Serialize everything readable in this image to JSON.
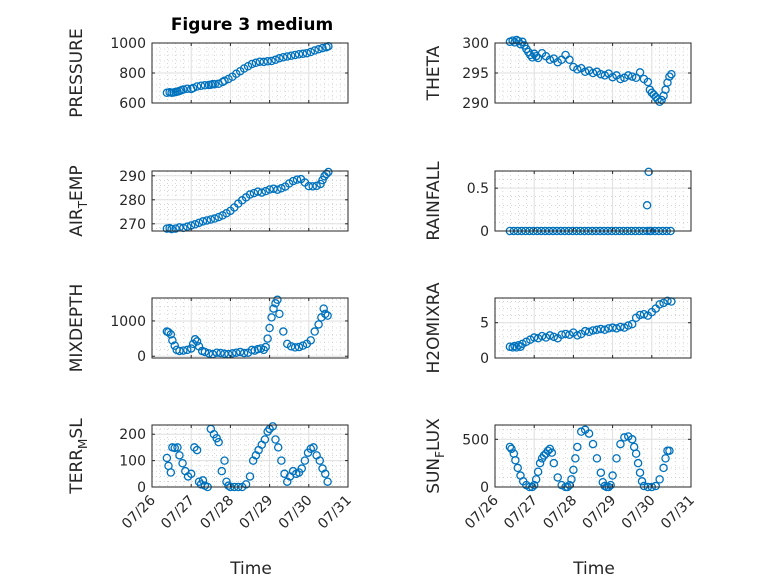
{
  "figure": {
    "title": "Figure 3 medium",
    "xlabel": "Time"
  },
  "colors": {
    "marker": "#0072BD",
    "axis": "#262626",
    "grid": "#dfdfdf",
    "minor_grid": "#bcbcbc",
    "background": "#ffffff"
  },
  "chart_data": [
    {
      "type": "scatter",
      "name": "pressure",
      "ylabel": "PRESSURE",
      "ylim": [
        600,
        1000
      ],
      "yticks": [
        600,
        800,
        1000
      ],
      "ytick_labels": [
        "600",
        "800",
        "1000"
      ],
      "xlim": [
        0,
        5
      ],
      "xticks": [
        0,
        1,
        2,
        3,
        4,
        5
      ],
      "xtick_labels": [
        "07/26",
        "07/27",
        "07/28",
        "07/29",
        "07/30",
        "07/31"
      ],
      "show_xticklabels": false,
      "grid": true,
      "minor_grid": true,
      "x": [
        0.38,
        0.45,
        0.5,
        0.55,
        0.6,
        0.65,
        0.7,
        0.75,
        0.8,
        0.9,
        1.0,
        1.05,
        1.15,
        1.25,
        1.35,
        1.45,
        1.5,
        1.55,
        1.6,
        1.7,
        1.8,
        1.85,
        1.95,
        2.05,
        2.15,
        2.25,
        2.35,
        2.45,
        2.55,
        2.65,
        2.75,
        2.85,
        2.95,
        3.05,
        3.15,
        3.25,
        3.35,
        3.45,
        3.55,
        3.65,
        3.75,
        3.85,
        3.95,
        4.05,
        4.15,
        4.25,
        4.35,
        4.45,
        4.5
      ],
      "y": [
        668,
        672,
        668,
        670,
        673,
        676,
        680,
        685,
        690,
        695,
        693,
        700,
        710,
        715,
        718,
        720,
        722,
        726,
        725,
        728,
        740,
        748,
        760,
        775,
        795,
        812,
        830,
        845,
        860,
        868,
        875,
        874,
        878,
        880,
        888,
        898,
        905,
        910,
        915,
        920,
        925,
        928,
        932,
        940,
        950,
        958,
        966,
        972,
        978
      ]
    },
    {
      "type": "scatter",
      "name": "theta",
      "ylabel": "THETA",
      "ylim": [
        290,
        300
      ],
      "yticks": [
        290,
        295,
        300
      ],
      "ytick_labels": [
        "290",
        "295",
        "300"
      ],
      "xlim": [
        0,
        5
      ],
      "xticks": [
        0,
        1,
        2,
        3,
        4,
        5
      ],
      "xtick_labels": [
        "07/26",
        "07/27",
        "07/28",
        "07/29",
        "07/30",
        "07/31"
      ],
      "show_xticklabels": false,
      "grid": true,
      "minor_grid": true,
      "x": [
        0.38,
        0.45,
        0.5,
        0.55,
        0.6,
        0.65,
        0.7,
        0.75,
        0.8,
        0.85,
        0.9,
        0.95,
        1.0,
        1.05,
        1.1,
        1.2,
        1.3,
        1.4,
        1.5,
        1.6,
        1.7,
        1.8,
        1.9,
        2.0,
        2.1,
        2.2,
        2.3,
        2.4,
        2.5,
        2.6,
        2.7,
        2.8,
        2.9,
        3.0,
        3.1,
        3.2,
        3.3,
        3.4,
        3.5,
        3.6,
        3.7,
        3.8,
        3.9,
        3.95,
        4.0,
        4.05,
        4.1,
        4.15,
        4.2,
        4.25,
        4.3,
        4.35,
        4.4,
        4.45,
        4.5
      ],
      "y": [
        300.2,
        300.4,
        300.1,
        300.5,
        300.3,
        299.8,
        300.2,
        299.6,
        299.0,
        298.5,
        298.0,
        297.6,
        298.2,
        297.8,
        297.5,
        298.3,
        297.8,
        297.2,
        297.4,
        296.8,
        297.2,
        298.0,
        297.2,
        296.0,
        295.6,
        295.8,
        295.2,
        295.4,
        295.0,
        295.2,
        294.8,
        294.6,
        294.9,
        294.3,
        294.6,
        294.0,
        294.2,
        294.6,
        294.4,
        294.2,
        295.1,
        294.0,
        293.5,
        292.2,
        291.7,
        291.4,
        291.0,
        290.6,
        290.2,
        290.5,
        291.2,
        292.2,
        293.4,
        294.4,
        294.8
      ]
    },
    {
      "type": "scatter",
      "name": "air_temp",
      "ylabel": "AIR_TEMP",
      "ylim": [
        267,
        292
      ],
      "yticks": [
        270,
        280,
        290
      ],
      "ytick_labels": [
        "270",
        "280",
        "290"
      ],
      "xlim": [
        0,
        5
      ],
      "xticks": [
        0,
        1,
        2,
        3,
        4,
        5
      ],
      "xtick_labels": [
        "07/26",
        "07/27",
        "07/28",
        "07/29",
        "07/30",
        "07/31"
      ],
      "show_xticklabels": false,
      "grid": true,
      "minor_grid": true,
      "x": [
        0.38,
        0.45,
        0.5,
        0.6,
        0.7,
        0.8,
        0.9,
        1.0,
        1.1,
        1.2,
        1.3,
        1.4,
        1.5,
        1.6,
        1.7,
        1.8,
        1.9,
        2.0,
        2.1,
        2.2,
        2.3,
        2.4,
        2.5,
        2.6,
        2.7,
        2.8,
        2.9,
        3.0,
        3.1,
        3.2,
        3.3,
        3.4,
        3.5,
        3.6,
        3.7,
        3.8,
        3.9,
        4.0,
        4.1,
        4.2,
        4.3,
        4.35,
        4.4,
        4.45,
        4.5
      ],
      "y": [
        268.0,
        268.2,
        267.8,
        268.0,
        268.5,
        268.3,
        268.8,
        269.3,
        269.8,
        270.4,
        271.0,
        271.4,
        271.8,
        272.2,
        272.8,
        273.5,
        274.4,
        275.4,
        276.8,
        278.4,
        279.8,
        281.0,
        282.2,
        282.8,
        283.4,
        283.0,
        283.6,
        284.3,
        284.6,
        284.2,
        284.8,
        285.5,
        286.8,
        287.8,
        288.4,
        288.6,
        287.2,
        285.7,
        285.6,
        285.8,
        286.6,
        288.2,
        289.8,
        290.8,
        291.6
      ]
    },
    {
      "type": "scatter",
      "name": "rainfall",
      "ylabel": "RAINFALL",
      "ylim": [
        0,
        0.7
      ],
      "yticks": [
        0,
        0.5
      ],
      "ytick_labels": [
        "0",
        "0.5"
      ],
      "xlim": [
        0,
        5
      ],
      "xticks": [
        0,
        1,
        2,
        3,
        4,
        5
      ],
      "xtick_labels": [
        "07/26",
        "07/27",
        "07/28",
        "07/29",
        "07/30",
        "07/31"
      ],
      "show_xticklabels": false,
      "grid": true,
      "minor_grid": true,
      "x": [
        0.38,
        0.48,
        0.58,
        0.68,
        0.78,
        0.88,
        0.98,
        1.08,
        1.18,
        1.28,
        1.38,
        1.48,
        1.58,
        1.68,
        1.78,
        1.88,
        1.98,
        2.08,
        2.18,
        2.28,
        2.38,
        2.48,
        2.58,
        2.68,
        2.78,
        2.88,
        2.98,
        3.08,
        3.18,
        3.28,
        3.38,
        3.48,
        3.58,
        3.68,
        3.78,
        3.88,
        3.95,
        3.98,
        4.08,
        4.18,
        4.28,
        4.38,
        4.48,
        3.88,
        3.92
      ],
      "y": [
        0,
        0,
        0,
        0,
        0,
        0,
        0,
        0,
        0,
        0,
        0,
        0,
        0,
        0,
        0,
        0,
        0,
        0,
        0,
        0,
        0,
        0,
        0,
        0,
        0,
        0,
        0,
        0,
        0,
        0,
        0,
        0,
        0,
        0,
        0,
        0,
        0,
        0,
        0,
        0,
        0,
        0,
        0,
        0.3,
        0.69
      ]
    },
    {
      "type": "scatter",
      "name": "mixdepth",
      "ylabel": "MIXDEPTH",
      "ylim": [
        -50,
        1650
      ],
      "yticks": [
        0,
        1000
      ],
      "ytick_labels": [
        "0",
        "1000"
      ],
      "xlim": [
        0,
        5
      ],
      "xticks": [
        0,
        1,
        2,
        3,
        4,
        5
      ],
      "xtick_labels": [
        "07/26",
        "07/27",
        "07/28",
        "07/29",
        "07/30",
        "07/31"
      ],
      "show_xticklabels": false,
      "grid": true,
      "minor_grid": true,
      "x": [
        0.38,
        0.42,
        0.48,
        0.52,
        0.58,
        0.63,
        0.7,
        0.8,
        0.9,
        1.0,
        1.05,
        1.1,
        1.15,
        1.2,
        1.28,
        1.35,
        1.45,
        1.55,
        1.65,
        1.75,
        1.85,
        1.95,
        2.05,
        2.15,
        2.25,
        2.35,
        2.45,
        2.55,
        2.62,
        2.7,
        2.78,
        2.85,
        2.9,
        2.95,
        3.0,
        3.05,
        3.1,
        3.15,
        3.2,
        3.25,
        3.35,
        3.45,
        3.55,
        3.65,
        3.75,
        3.85,
        3.95,
        4.05,
        4.15,
        4.25,
        4.32,
        4.38,
        4.42,
        4.48
      ],
      "y": [
        700,
        680,
        620,
        450,
        300,
        180,
        150,
        160,
        180,
        220,
        350,
        480,
        420,
        280,
        150,
        120,
        80,
        60,
        100,
        90,
        70,
        60,
        80,
        100,
        120,
        90,
        100,
        180,
        160,
        200,
        220,
        180,
        260,
        500,
        800,
        1100,
        1350,
        1500,
        1600,
        1200,
        700,
        350,
        280,
        250,
        260,
        300,
        350,
        450,
        700,
        900,
        1100,
        1350,
        1200,
        1150
      ]
    },
    {
      "type": "scatter",
      "name": "h2omixra",
      "ylabel": "H2OMIXRA",
      "ylim": [
        0,
        8.5
      ],
      "yticks": [
        0,
        5
      ],
      "ytick_labels": [
        "0",
        "5"
      ],
      "xlim": [
        0,
        5
      ],
      "xticks": [
        0,
        1,
        2,
        3,
        4,
        5
      ],
      "xtick_labels": [
        "07/26",
        "07/27",
        "07/28",
        "07/29",
        "07/30",
        "07/31"
      ],
      "show_xticklabels": false,
      "grid": true,
      "minor_grid": true,
      "x": [
        0.38,
        0.45,
        0.5,
        0.55,
        0.6,
        0.65,
        0.7,
        0.8,
        0.9,
        1.0,
        1.1,
        1.2,
        1.3,
        1.4,
        1.5,
        1.6,
        1.7,
        1.8,
        1.9,
        2.0,
        2.1,
        2.2,
        2.3,
        2.4,
        2.5,
        2.6,
        2.7,
        2.8,
        2.9,
        3.0,
        3.1,
        3.2,
        3.3,
        3.4,
        3.5,
        3.6,
        3.7,
        3.8,
        3.9,
        4.0,
        4.1,
        4.2,
        4.3,
        4.4,
        4.5
      ],
      "y": [
        1.6,
        1.5,
        1.7,
        1.5,
        1.8,
        1.6,
        2.0,
        2.3,
        2.6,
        2.9,
        2.8,
        3.1,
        2.9,
        3.2,
        3.0,
        2.8,
        3.3,
        3.4,
        3.3,
        3.6,
        3.2,
        3.4,
        3.8,
        3.7,
        3.9,
        4.0,
        4.1,
        4.0,
        4.2,
        4.3,
        4.2,
        4.4,
        4.3,
        4.6,
        4.8,
        5.7,
        6.1,
        6.2,
        6.0,
        6.5,
        7.0,
        7.6,
        7.8,
        8.1,
        8.0
      ]
    },
    {
      "type": "scatter",
      "name": "terr_msl",
      "ylabel": "TERR_MSL",
      "ylim": [
        0,
        235
      ],
      "yticks": [
        0,
        100,
        200
      ],
      "ytick_labels": [
        "0",
        "100",
        "200"
      ],
      "xlim": [
        0,
        5
      ],
      "xticks": [
        0,
        1,
        2,
        3,
        4,
        5
      ],
      "xtick_labels": [
        "07/26",
        "07/27",
        "07/28",
        "07/29",
        "07/30",
        "07/31"
      ],
      "show_xticklabels": true,
      "grid": true,
      "minor_grid": true,
      "x": [
        0.38,
        0.42,
        0.48,
        0.52,
        0.58,
        0.65,
        0.7,
        0.78,
        0.85,
        0.92,
        1.0,
        1.08,
        1.15,
        1.2,
        1.25,
        1.3,
        1.35,
        1.42,
        1.5,
        1.58,
        1.65,
        1.7,
        1.78,
        1.85,
        1.9,
        1.95,
        2.0,
        2.1,
        2.2,
        2.3,
        2.4,
        2.5,
        2.58,
        2.65,
        2.72,
        2.8,
        2.88,
        2.95,
        3.0,
        3.08,
        3.15,
        3.22,
        3.3,
        3.38,
        3.45,
        3.52,
        3.6,
        3.68,
        3.75,
        3.82,
        3.9,
        3.98,
        4.05,
        4.12,
        4.2,
        4.28,
        4.35,
        4.42,
        4.48
      ],
      "y": [
        110,
        80,
        55,
        150,
        148,
        150,
        120,
        90,
        60,
        40,
        50,
        150,
        140,
        20,
        10,
        25,
        5,
        0,
        220,
        200,
        185,
        170,
        60,
        100,
        20,
        5,
        0,
        0,
        0,
        0,
        10,
        40,
        100,
        120,
        140,
        160,
        180,
        210,
        220,
        230,
        180,
        150,
        100,
        50,
        20,
        40,
        60,
        50,
        55,
        70,
        100,
        130,
        145,
        150,
        120,
        100,
        70,
        50,
        20
      ]
    },
    {
      "type": "scatter",
      "name": "sun_flux",
      "ylabel": "SUN_FLUX",
      "ylim": [
        0,
        650
      ],
      "yticks": [
        0,
        500
      ],
      "ytick_labels": [
        "0",
        "500"
      ],
      "xlim": [
        0,
        5
      ],
      "xticks": [
        0,
        1,
        2,
        3,
        4,
        5
      ],
      "xtick_labels": [
        "07/26",
        "07/27",
        "07/28",
        "07/29",
        "07/30",
        "07/31"
      ],
      "show_xticklabels": true,
      "grid": true,
      "minor_grid": true,
      "x": [
        0.38,
        0.42,
        0.48,
        0.52,
        0.58,
        0.65,
        0.72,
        0.8,
        0.88,
        0.95,
        1.0,
        1.05,
        1.1,
        1.15,
        1.2,
        1.25,
        1.3,
        1.35,
        1.4,
        1.45,
        1.5,
        1.6,
        1.7,
        1.8,
        1.85,
        1.9,
        1.95,
        2.0,
        2.05,
        2.1,
        2.2,
        2.3,
        2.4,
        2.5,
        2.6,
        2.7,
        2.75,
        2.8,
        2.85,
        2.9,
        2.95,
        3.0,
        3.1,
        3.2,
        3.3,
        3.4,
        3.5,
        3.55,
        3.6,
        3.65,
        3.7,
        3.75,
        3.8,
        3.9,
        4.0,
        4.1,
        4.2,
        4.3,
        4.35,
        4.4,
        4.45
      ],
      "y": [
        420,
        400,
        350,
        280,
        200,
        120,
        60,
        20,
        0,
        0,
        20,
        80,
        160,
        250,
        300,
        330,
        350,
        380,
        400,
        360,
        250,
        100,
        20,
        0,
        0,
        20,
        80,
        180,
        300,
        420,
        580,
        600,
        560,
        450,
        300,
        150,
        50,
        10,
        0,
        0,
        20,
        120,
        300,
        450,
        520,
        530,
        500,
        420,
        350,
        250,
        150,
        60,
        10,
        0,
        0,
        10,
        80,
        200,
        300,
        380,
        380
      ]
    }
  ]
}
